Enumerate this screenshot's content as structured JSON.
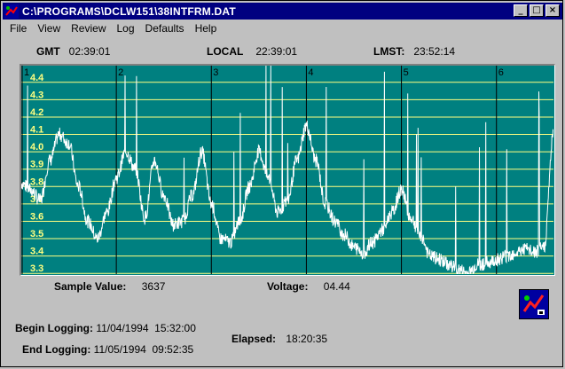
{
  "window": {
    "title": "C:\\PROGRAMS\\DCLW151\\38INTFRM.DAT"
  },
  "titlebar_buttons": {
    "minimize": "_",
    "maximize": "□",
    "close": "×"
  },
  "menu": [
    "File",
    "View",
    "Review",
    "Log",
    "Defaults",
    "Help"
  ],
  "clocks": {
    "gmt_label": "GMT",
    "gmt_value": "02:39:01",
    "local_label": "LOCAL",
    "local_value": "22:39:01",
    "lmst_label": "LMST:",
    "lmst_value": "23:52:14"
  },
  "chart_data": {
    "type": "line",
    "y_tick_labels": [
      "4.4",
      "4.3",
      "4.2",
      "4.1",
      "4.0",
      "3.9",
      "3.8",
      "3.7",
      "3.6",
      "3.5",
      "3.4",
      "3.3"
    ],
    "ylim": [
      3.25,
      4.45
    ],
    "x_tick_labels": [
      "1",
      "2",
      "3",
      "4",
      "5",
      "6"
    ],
    "xlim": [
      1,
      6.6
    ],
    "grid": true,
    "series_color": "#ffffff",
    "background_color": "#008080",
    "grid_color_horizontal": "#ffff80",
    "grid_color_vertical": "#000000",
    "x": [
      1.0,
      1.1,
      1.2,
      1.3,
      1.4,
      1.5,
      1.6,
      1.7,
      1.8,
      1.9,
      2.0,
      2.1,
      2.2,
      2.3,
      2.4,
      2.5,
      2.6,
      2.7,
      2.8,
      2.9,
      3.0,
      3.1,
      3.2,
      3.3,
      3.4,
      3.5,
      3.6,
      3.7,
      3.8,
      3.9,
      4.0,
      4.1,
      4.2,
      4.3,
      4.4,
      4.5,
      4.6,
      4.7,
      4.8,
      4.9,
      5.0,
      5.1,
      5.2,
      5.3,
      5.4,
      5.5,
      5.6,
      5.7,
      5.8,
      5.9,
      6.0,
      6.1,
      6.2,
      6.3,
      6.4,
      6.5,
      6.6
    ],
    "y": [
      3.82,
      3.78,
      3.72,
      3.95,
      4.1,
      4.05,
      3.8,
      3.6,
      3.5,
      3.65,
      3.85,
      4.0,
      3.9,
      3.62,
      3.95,
      3.75,
      3.58,
      3.6,
      3.75,
      4.0,
      3.7,
      3.5,
      3.48,
      3.6,
      3.8,
      4.0,
      3.85,
      3.65,
      3.72,
      3.95,
      4.15,
      3.95,
      3.7,
      3.6,
      3.52,
      3.45,
      3.42,
      3.48,
      3.55,
      3.65,
      3.78,
      3.62,
      3.52,
      3.4,
      3.38,
      3.35,
      3.32,
      3.3,
      3.35,
      3.36,
      3.38,
      3.4,
      3.42,
      3.44,
      3.42,
      3.45,
      4.1
    ]
  },
  "readouts": {
    "sample_label": "Sample Value:",
    "sample_value": "3637",
    "voltage_label": "Voltage:",
    "voltage_value": "04.44",
    "begin_label": "Begin Logging:",
    "begin_value": "11/04/1994  15:32:00",
    "end_label": "End Logging:",
    "end_value": "11/05/1994  09:52:35",
    "elapsed_label": "Elapsed:",
    "elapsed_value": "18:20:35"
  }
}
